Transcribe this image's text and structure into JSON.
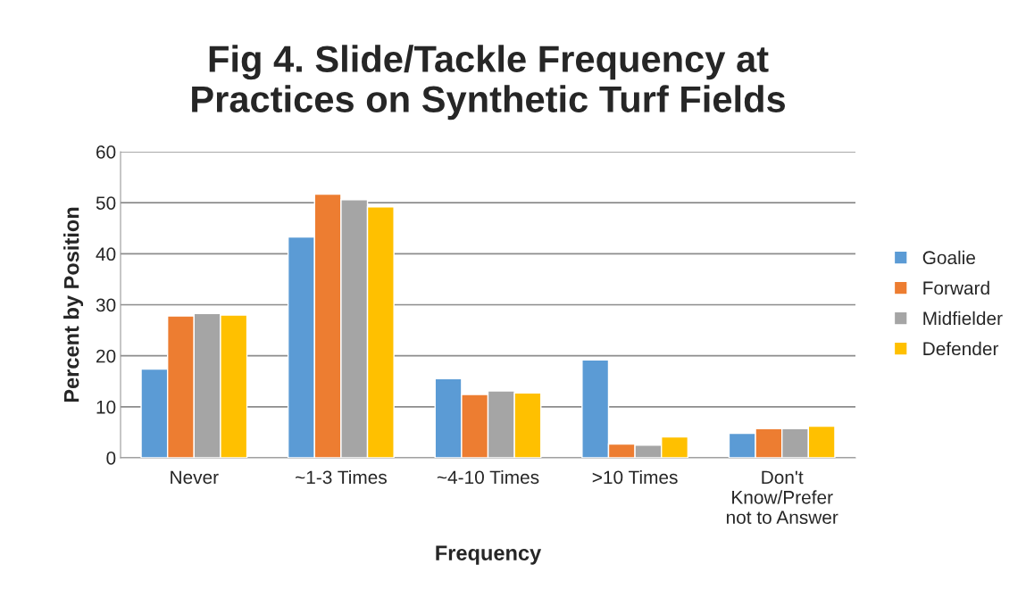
{
  "chart_data": {
    "type": "bar",
    "title": "Fig 4. Slide/Tackle Frequency at\nPractices on Synthetic Turf Fields",
    "xlabel": "Frequency",
    "ylabel": "Percent by Position",
    "categories": [
      "Never",
      "~1-3 Times",
      "~4-10 Times",
      ">10 Times",
      "Don't\nKnow/Prefer\nnot to Answer"
    ],
    "series": [
      {
        "name": "Goalie",
        "color": "#5b9bd5",
        "values": [
          17.4,
          43.3,
          15.5,
          19.2,
          4.8
        ]
      },
      {
        "name": "Forward",
        "color": "#ed7d31",
        "values": [
          27.8,
          51.7,
          12.4,
          2.7,
          5.7
        ]
      },
      {
        "name": "Midfielder",
        "color": "#a5a5a5",
        "values": [
          28.3,
          50.6,
          13.1,
          2.5,
          5.7
        ]
      },
      {
        "name": "Defender",
        "color": "#ffc000",
        "values": [
          28.0,
          49.2,
          12.7,
          4.1,
          6.2
        ]
      }
    ],
    "ylim": [
      0,
      60
    ],
    "yticks": [
      0,
      10,
      20,
      30,
      40,
      50,
      60
    ],
    "grid": "y",
    "legend": "right"
  }
}
